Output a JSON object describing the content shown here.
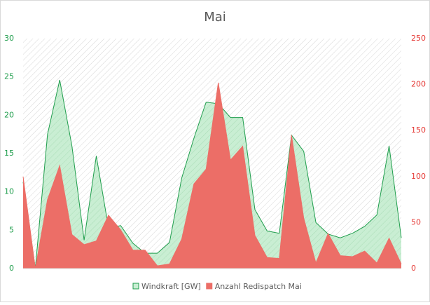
{
  "chart_data": {
    "type": "area",
    "title": "Mai",
    "categories": [
      null,
      null,
      null,
      null,
      null,
      null,
      null,
      null,
      null,
      null,
      null,
      null,
      null,
      null,
      null,
      null,
      null,
      null,
      null,
      null,
      null,
      null,
      null,
      null,
      null,
      null,
      null,
      null,
      null,
      null,
      null,
      null
    ],
    "series": [
      {
        "name": "Windkraft [GW]",
        "color": "#1f9d4c",
        "fill": "#c9eed3",
        "axis": "y",
        "values": [
          11.3,
          0,
          17.5,
          24.6,
          16,
          3.7,
          14.7,
          5.3,
          5.6,
          3.3,
          2,
          2,
          3.4,
          11.8,
          17,
          21.7,
          21.5,
          19.7,
          19.7,
          7.7,
          4.9,
          4.6,
          17.4,
          15.3,
          6,
          4.5,
          4,
          4.6,
          5.5,
          7,
          16,
          4
        ]
      },
      {
        "name": "Anzahl Redispatch Mai",
        "color": "#ec6e67",
        "fill": "#ec6e67",
        "axis": "y2",
        "values": [
          100,
          0,
          75,
          112,
          37,
          26,
          30,
          58,
          42,
          20,
          20,
          3,
          5,
          32,
          92,
          108,
          202,
          118,
          133,
          36,
          12,
          11,
          145,
          55,
          6,
          38,
          14,
          13,
          19,
          6,
          33,
          5
        ]
      }
    ],
    "ylim": [
      0,
      30
    ],
    "yticks": [
      0,
      5,
      10,
      15,
      20,
      25,
      30
    ],
    "ytick_color": "#1f9d4c",
    "y2lim": [
      0,
      250
    ],
    "y2ticks": [
      0,
      50,
      100,
      150,
      200,
      250
    ],
    "y2tick_color": "#e53935",
    "legend": "bottom"
  }
}
